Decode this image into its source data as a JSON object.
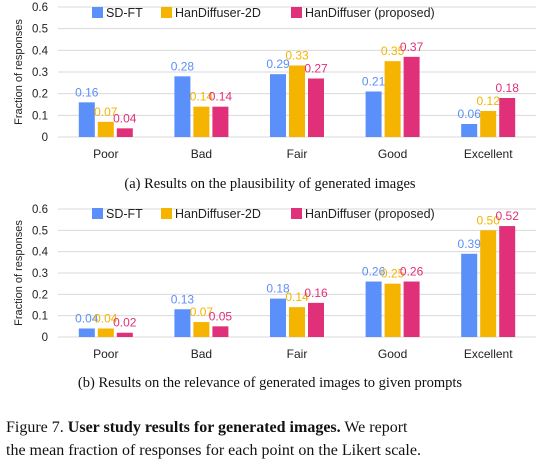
{
  "colors": {
    "SD-FT": "#5b8ff9",
    "HanDiffuser-2D": "#f5b400",
    "HanDiffuser (proposed)": "#e0307a"
  },
  "chart_data": [
    {
      "type": "bar",
      "subfigure": "a",
      "caption": "(a) Results on the plausibility of generated images",
      "ylabel": "Fraction of responses",
      "ylim": [
        0,
        0.6
      ],
      "yticks": [
        "0",
        "0.1",
        "0.2",
        "0.3",
        "0.4",
        "0.5",
        "0.6"
      ],
      "categories": [
        "Poor",
        "Bad",
        "Fair",
        "Good",
        "Excellent"
      ],
      "legend_position": "top",
      "grid": "horizontal",
      "series": [
        {
          "name": "SD-FT",
          "color": "#5b8ff9",
          "values": [
            0.16,
            0.28,
            0.29,
            0.21,
            0.06
          ],
          "labels": [
            "0.16",
            "0.28",
            "0.29",
            "0.21",
            "0.06"
          ]
        },
        {
          "name": "HanDiffuser-2D",
          "color": "#f5b400",
          "values": [
            0.07,
            0.14,
            0.33,
            0.35,
            0.12
          ],
          "labels": [
            "0.07",
            "0.14",
            "0.33",
            "0.35",
            "0.12"
          ]
        },
        {
          "name": "HanDiffuser (proposed)",
          "color": "#e0307a",
          "values": [
            0.04,
            0.14,
            0.27,
            0.37,
            0.18
          ],
          "labels": [
            "0.04",
            "0.14",
            "0.27",
            "0.37",
            "0.18"
          ]
        }
      ]
    },
    {
      "type": "bar",
      "subfigure": "b",
      "caption": "(b) Results on the relevance of generated images to given prompts",
      "ylabel": "Fraction of responses",
      "ylim": [
        0,
        0.6
      ],
      "yticks": [
        "0",
        "0.1",
        "0.2",
        "0.3",
        "0.4",
        "0.5",
        "0.6"
      ],
      "categories": [
        "Poor",
        "Bad",
        "Fair",
        "Good",
        "Excellent"
      ],
      "legend_position": "top",
      "grid": "horizontal",
      "series": [
        {
          "name": "SD-FT",
          "color": "#5b8ff9",
          "values": [
            0.04,
            0.13,
            0.18,
            0.26,
            0.39
          ],
          "labels": [
            "0.04",
            "0.13",
            "0.18",
            "0.26",
            "0.39"
          ]
        },
        {
          "name": "HanDiffuser-2D",
          "color": "#f5b400",
          "values": [
            0.04,
            0.07,
            0.14,
            0.25,
            0.5
          ],
          "labels": [
            "0.04",
            "0.07",
            "0.14",
            "0.25",
            "0.50"
          ]
        },
        {
          "name": "HanDiffuser (proposed)",
          "color": "#e0307a",
          "values": [
            0.02,
            0.05,
            0.16,
            0.26,
            0.52
          ],
          "labels": [
            "0.02",
            "0.05",
            "0.16",
            "0.26",
            "0.52"
          ]
        }
      ]
    }
  ],
  "figure_caption": {
    "number": "Figure 7.",
    "bold": "User study results for generated images.",
    "rest_line1": "We report",
    "line2": "the mean fraction of responses for each point on the Likert scale."
  }
}
